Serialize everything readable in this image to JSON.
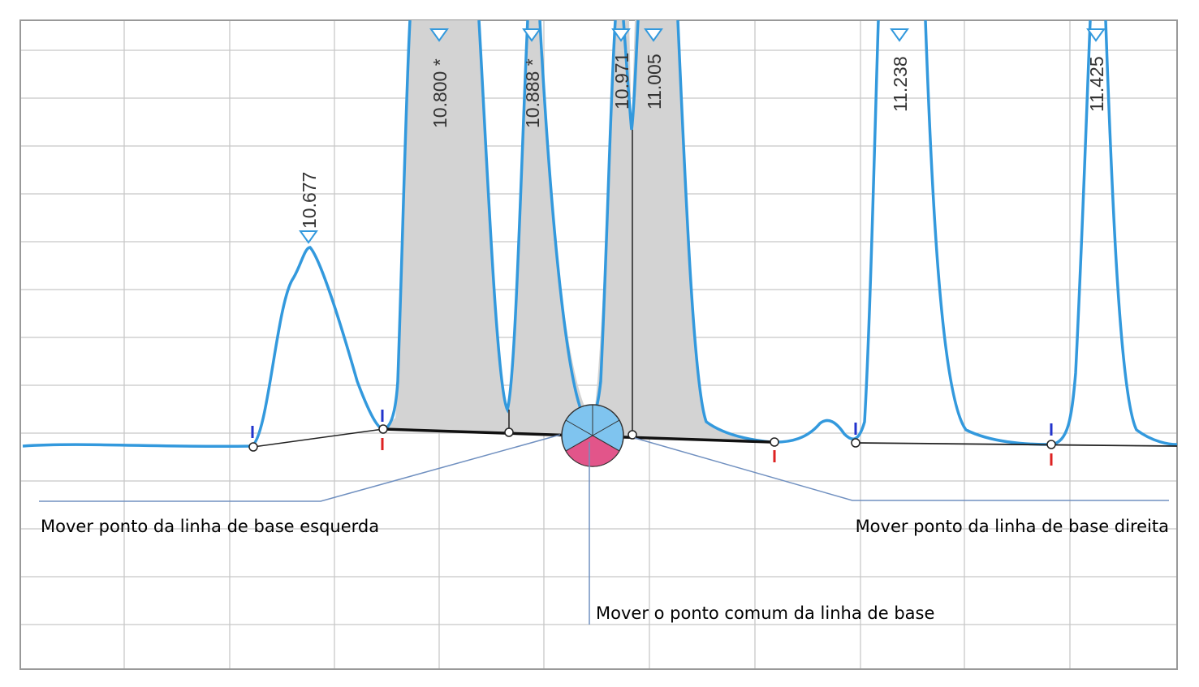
{
  "peak_labels": [
    "10.677",
    "10.800 *",
    "10.888 *",
    "10.971",
    "11.005",
    "11.238",
    "11.425"
  ],
  "annotations": {
    "left": "Mover ponto da linha de base esquerda",
    "right": "Mover ponto da linha de base direita",
    "center": "Mover o ponto comum da linha de base"
  }
}
